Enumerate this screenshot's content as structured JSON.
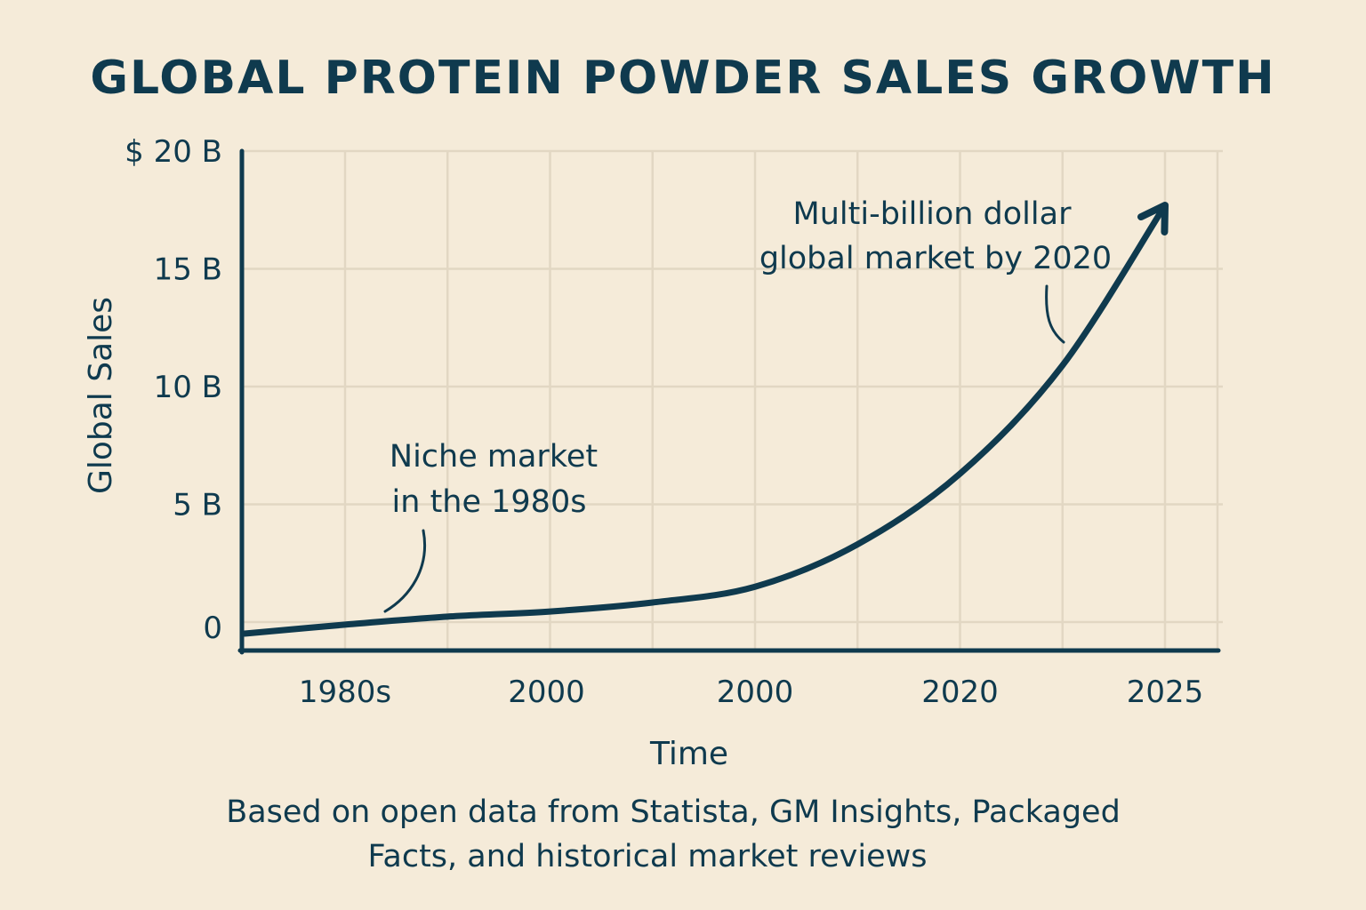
{
  "chart_data": {
    "type": "line",
    "title": "GLOBAL PROTEIN POWDER SALES GROWTH",
    "xlabel": "Time",
    "ylabel": "Global Sales",
    "x_tick_labels": [
      "1980s",
      "2000",
      "2000",
      "2020",
      "2025"
    ],
    "y_tick_labels": [
      "0",
      "5 B",
      "10 B",
      "15 B",
      "$ 20 B"
    ],
    "y_ticks": [
      0,
      5,
      10,
      15,
      20
    ],
    "ylim": [
      0,
      20
    ],
    "grid": true,
    "series": [
      {
        "color": "#0f3a4e",
        "arrow_end": true,
        "points": [
          [
            -0.49,
            -0.49
          ],
          [
            0.0,
            -0.11
          ],
          [
            0.5,
            0.23
          ],
          [
            1.0,
            0.45
          ],
          [
            1.5,
            0.83
          ],
          [
            2.0,
            1.5
          ],
          [
            2.5,
            3.3
          ],
          [
            3.0,
            6.3
          ],
          [
            3.5,
            10.9
          ],
          [
            4.0,
            17.7
          ]
        ]
      }
    ],
    "annotations": [
      {
        "lines": [
          "Niche market",
          "in the 1980s"
        ]
      },
      {
        "lines": [
          "Multi-billion dollar",
          "global market by 2020"
        ]
      }
    ],
    "footnote": [
      "Based on open data from Statista, GM Insights, Packaged",
      "Facts, and historical market reviews"
    ]
  },
  "colors": {
    "background": "#f5ebd9",
    "ink": "#0f3a4e",
    "grid": "#e2d7c3"
  }
}
